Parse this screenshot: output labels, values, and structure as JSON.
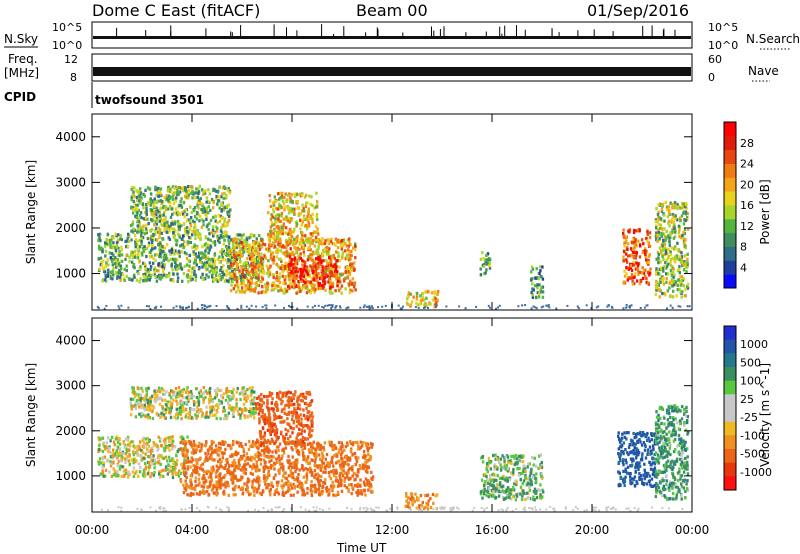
{
  "header": {
    "station": "Dome C East (fitACF)",
    "beam": "Beam 00",
    "date": "01/Sep/2016"
  },
  "strip_panels": {
    "nsky": {
      "left_label": "N.Sky",
      "ticks_left": [
        "10^5",
        "10^0"
      ],
      "ticks_right": [
        "10^5",
        "10^0"
      ],
      "right_label": "N.Search"
    },
    "freq": {
      "left_label_top": "Freq.",
      "left_label_unit": "[MHz]",
      "ticks_left": [
        "12",
        "8"
      ],
      "ticks_right": [
        "60",
        "0"
      ],
      "right_label": "Nave"
    },
    "cpid": {
      "label": "CPID",
      "program": "twofsound 3501"
    }
  },
  "colors": {
    "power_scale": [
      "#0a0aff",
      "#1f3f9e",
      "#2f6e8a",
      "#3e8e5f",
      "#53b53f",
      "#a8d52a",
      "#e8d21a",
      "#f5a41a",
      "#f07a14",
      "#e8480f",
      "#e01c0c",
      "#ff0000"
    ],
    "velocity_scale": [
      "#1f2fd0",
      "#2255a8",
      "#24788a",
      "#3a9060",
      "#58c840",
      "#c8c8c8",
      "#c8c8c8",
      "#f0b822",
      "#f0901e",
      "#ec6418",
      "#e8360f",
      "#ff1010"
    ]
  },
  "chart_data": [
    {
      "type": "heatmap",
      "name": "power",
      "ylabel": "Slant Range [km]",
      "yticks": [
        "1000",
        "2000",
        "3000",
        "4000"
      ],
      "ylim": [
        200,
        4500
      ],
      "xlim": [
        0,
        24
      ],
      "colorbar_label": "Power [dB]",
      "colorbar_ticks": [
        "4",
        "8",
        "12",
        "16",
        "20",
        "24",
        "28"
      ],
      "clim": [
        0,
        32
      ],
      "regions": [
        {
          "t": [
            0.2,
            6.8
          ],
          "r": [
            850,
            1900
          ],
          "v": 12
        },
        {
          "t": [
            5.5,
            10.5
          ],
          "r": [
            600,
            1800
          ],
          "v": 20
        },
        {
          "t": [
            7.8,
            9.8
          ],
          "r": [
            700,
            1400
          ],
          "v": 27
        },
        {
          "t": [
            1.5,
            5.5
          ],
          "r": [
            1900,
            2950
          ],
          "v": 13
        },
        {
          "t": [
            7.0,
            9.0
          ],
          "r": [
            1700,
            2800
          ],
          "v": 18
        },
        {
          "t": [
            12.5,
            13.8
          ],
          "r": [
            300,
            650
          ],
          "v": 18
        },
        {
          "t": [
            15.5,
            15.9
          ],
          "r": [
            1000,
            1500
          ],
          "v": 10
        },
        {
          "t": [
            17.5,
            18.0
          ],
          "r": [
            500,
            1200
          ],
          "v": 10
        },
        {
          "t": [
            21.2,
            22.3
          ],
          "r": [
            800,
            2000
          ],
          "v": 25
        },
        {
          "t": [
            22.5,
            23.8
          ],
          "r": [
            500,
            2600
          ],
          "v": 14
        }
      ]
    },
    {
      "type": "heatmap",
      "name": "velocity",
      "xlabel": "Time UT",
      "xticks": [
        "00:00",
        "04:00",
        "08:00",
        "12:00",
        "16:00",
        "20:00",
        "00:00"
      ],
      "ylabel": "Slant Range [km]",
      "yticks": [
        "1000",
        "2000",
        "3000",
        "4000"
      ],
      "ylim": [
        200,
        4500
      ],
      "xlim": [
        0,
        24
      ],
      "colorbar_label": "Velocity [m s^-1]",
      "colorbar_ticks": [
        "1000",
        "500",
        "100",
        "25",
        "-25",
        "-100",
        "-500",
        "-1000"
      ],
      "regions": [
        {
          "t": [
            0.2,
            3.8
          ],
          "r": [
            1000,
            1900
          ],
          "v": -25
        },
        {
          "t": [
            3.5,
            11.2
          ],
          "r": [
            600,
            1800
          ],
          "v": -300
        },
        {
          "t": [
            1.5,
            6.5
          ],
          "r": [
            2300,
            3000
          ],
          "v": 0
        },
        {
          "t": [
            6.5,
            8.8
          ],
          "r": [
            1700,
            2900
          ],
          "v": -400
        },
        {
          "t": [
            12.5,
            13.8
          ],
          "r": [
            300,
            650
          ],
          "v": -200
        },
        {
          "t": [
            15.5,
            18.0
          ],
          "r": [
            500,
            1500
          ],
          "v": 80
        },
        {
          "t": [
            21.0,
            22.5
          ],
          "r": [
            800,
            2000
          ],
          "v": 600
        },
        {
          "t": [
            22.5,
            23.8
          ],
          "r": [
            500,
            2600
          ],
          "v": 150
        }
      ]
    }
  ]
}
